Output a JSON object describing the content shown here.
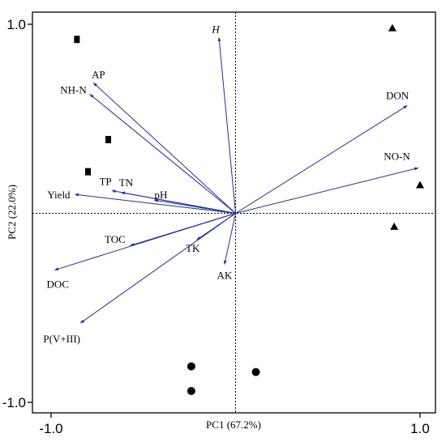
{
  "chart_data": {
    "type": "scatter",
    "subtype": "pca-biplot",
    "xlabel": "PC1 (67.2%)",
    "ylabel": "PC2 (22.0%)",
    "xlim": [
      -1.0,
      1.0
    ],
    "ylim": [
      -1.0,
      1.0
    ],
    "x_ticks": [
      "-1.0",
      "1.0"
    ],
    "y_ticks": [
      "1.0",
      "-1.0"
    ],
    "reference_lines": {
      "x": 0,
      "y": 0,
      "style": "dotted"
    },
    "vectors": [
      {
        "label": "H",
        "italic": true,
        "x": -0.09,
        "y": 0.93
      },
      {
        "label": "AP",
        "x": -0.77,
        "y": 0.69
      },
      {
        "label": "NH-N",
        "x": -0.79,
        "y": 0.63
      },
      {
        "label": "DON",
        "x": 0.93,
        "y": 0.57
      },
      {
        "label": "NO-N",
        "x": 0.99,
        "y": 0.24
      },
      {
        "label": "TP",
        "x": -0.67,
        "y": 0.12
      },
      {
        "label": "TN",
        "x": -0.62,
        "y": 0.11
      },
      {
        "label": "Yield",
        "x": -0.87,
        "y": 0.1
      },
      {
        "label": "pH",
        "x": -0.44,
        "y": 0.07
      },
      {
        "label": "TOC",
        "x": -0.57,
        "y": -0.17
      },
      {
        "label": "TK",
        "x": -0.21,
        "y": -0.14
      },
      {
        "label": "AK",
        "x": -0.06,
        "y": -0.27
      },
      {
        "label": "DOC",
        "x": -0.98,
        "y": -0.3
      },
      {
        "label": "P(V+III)",
        "x": -0.84,
        "y": -0.58
      }
    ],
    "series": [
      {
        "marker": "square",
        "points": [
          [
            -0.86,
            0.92
          ],
          [
            -0.69,
            0.39
          ],
          [
            -0.8,
            0.22
          ]
        ]
      },
      {
        "marker": "triangle",
        "points": [
          [
            0.85,
            0.98
          ],
          [
            1.0,
            0.15
          ],
          [
            0.86,
            -0.07
          ]
        ]
      },
      {
        "marker": "circle",
        "points": [
          [
            -0.24,
            -0.81
          ],
          [
            0.11,
            -0.84
          ],
          [
            -0.24,
            -0.94
          ]
        ]
      }
    ]
  }
}
